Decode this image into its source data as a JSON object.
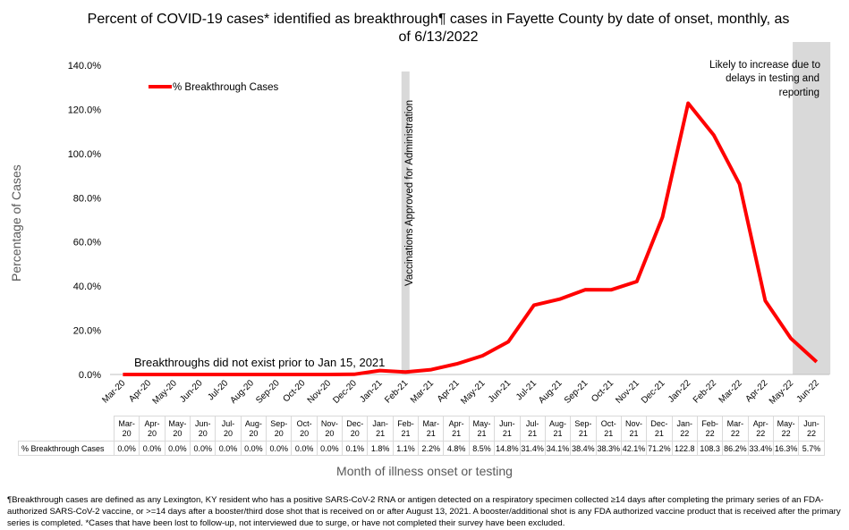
{
  "title": "Percent of COVID-19 cases* identified as breakthrough¶ cases in Fayette County by date of onset, monthly, as of 6/13/2022",
  "xlabel": "Month of illness onset or testing",
  "ylabel": "Percentage of Cases",
  "legend": {
    "label": "% Breakthrough Cases",
    "color": "#ff0000"
  },
  "annotations": {
    "vaccination": "Vaccinations Approved for Administration",
    "no_breakthrough": "Breakthroughs did not exist prior to Jan 15, 2021",
    "likely_increase": [
      "Likely to increase due to",
      "delays in testing and",
      "reporting"
    ]
  },
  "table": {
    "row_label": "% Breakthrough Cases",
    "header": [
      [
        "Mar-",
        "20"
      ],
      [
        "Apr-",
        "20"
      ],
      [
        "May-",
        "20"
      ],
      [
        "Jun-",
        "20"
      ],
      [
        "Jul-",
        "20"
      ],
      [
        "Aug-",
        "20"
      ],
      [
        "Sep-",
        "20"
      ],
      [
        "Oct-",
        "20"
      ],
      [
        "Nov-",
        "20"
      ],
      [
        "Dec-",
        "20"
      ],
      [
        "Jan-",
        "21"
      ],
      [
        "Feb-",
        "21"
      ],
      [
        "Mar-",
        "21"
      ],
      [
        "Apr-",
        "21"
      ],
      [
        "May-",
        "21"
      ],
      [
        "Jun-",
        "21"
      ],
      [
        "Jul-",
        "21"
      ],
      [
        "Aug-",
        "21"
      ],
      [
        "Sep-",
        "21"
      ],
      [
        "Oct-",
        "21"
      ],
      [
        "Nov-",
        "21"
      ],
      [
        "Dec-",
        "21"
      ],
      [
        "Jan-",
        "22"
      ],
      [
        "Feb-",
        "22"
      ],
      [
        "Mar-",
        "22"
      ],
      [
        "Apr-",
        "22"
      ],
      [
        "May-",
        "22"
      ],
      [
        "Jun-",
        "22"
      ]
    ],
    "values": [
      "0.0%",
      "0.0%",
      "0.0%",
      "0.0%",
      "0.0%",
      "0.0%",
      "0.0%",
      "0.0%",
      "0.0%",
      "0.1%",
      "1.8%",
      "1.1%",
      "2.2%",
      "4.8%",
      "8.5%",
      "14.8%",
      "31.4%",
      "34.1%",
      "38.4%",
      "38.3%",
      "42.1%",
      "71.2%",
      "122.8",
      "108.3",
      "86.2%",
      "33.4%",
      "16.3%",
      "5.7%"
    ]
  },
  "footnote": "¶Breakthrough cases are defined as any Lexington, KY resident who has a positive SARS-CoV-2 RNA or antigen detected on a respiratory specimen collected ≥14 days after completing the primary series of an FDA-authorized SARS-CoV-2 vaccine, or >=14 days after a booster/third dose shot that is received on or after August 13, 2021.  A booster/additional shot is any FDA authorized vaccine product that is received after the primary series is completed. *Cases that have been lost to follow-up, not interviewed due to surge, or have not completed their survey have been excluded.",
  "chart_data": {
    "type": "line",
    "title": "Percent of COVID-19 cases* identified as breakthrough¶ cases in Fayette County by date of onset, monthly, as of 6/13/2022",
    "xlabel": "Month of illness onset or testing",
    "ylabel": "Percentage of Cases",
    "categories": [
      "Mar-20",
      "Apr-20",
      "May-20",
      "Jun-20",
      "Jul-20",
      "Aug-20",
      "Sep-20",
      "Oct-20",
      "Nov-20",
      "Dec-20",
      "Jan-21",
      "Feb-21",
      "Mar-21",
      "Apr-21",
      "May-21",
      "Jun-21",
      "Jul-21",
      "Aug-21",
      "Sep-21",
      "Oct-21",
      "Nov-21",
      "Dec-21",
      "Jan-22",
      "Feb-22",
      "Mar-22",
      "Apr-22",
      "May-22",
      "Jun-22"
    ],
    "series": [
      {
        "name": "% Breakthrough Cases",
        "color": "#ff0000",
        "values": [
          0.0,
          0.0,
          0.0,
          0.0,
          0.0,
          0.0,
          0.0,
          0.0,
          0.0,
          0.1,
          1.8,
          1.1,
          2.2,
          4.8,
          8.5,
          14.8,
          31.4,
          34.1,
          38.4,
          38.3,
          42.1,
          71.2,
          122.8,
          108.3,
          86.2,
          33.4,
          16.3,
          5.7
        ]
      }
    ],
    "yticks": [
      "0.0%",
      "20.0%",
      "40.0%",
      "60.0%",
      "80.0%",
      "100.0%",
      "120.0%",
      "140.0%"
    ],
    "ylim": [
      0,
      140
    ],
    "grid": false,
    "legend_position": "top-left",
    "highlight_bands": [
      {
        "category": "Feb-21",
        "color": "#d9d9d9"
      },
      {
        "from": "May-22",
        "to": "Jun-22",
        "color": "#d9d9d9"
      }
    ]
  }
}
